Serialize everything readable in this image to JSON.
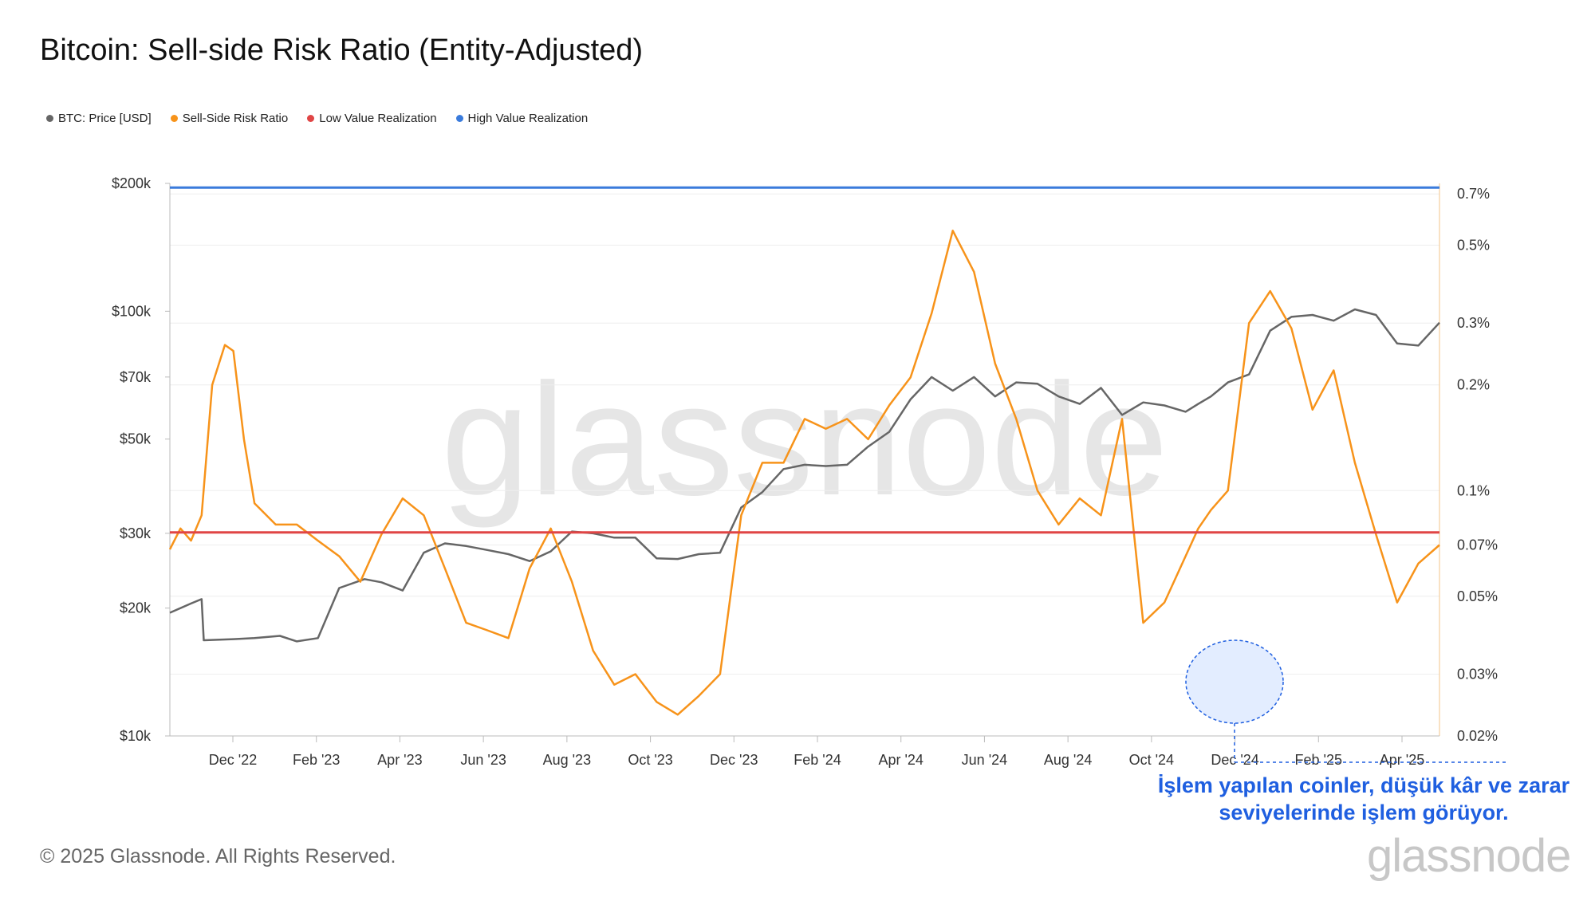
{
  "title": "Bitcoin: Sell-side Risk Ratio (Entity-Adjusted)",
  "legend": [
    {
      "label": "BTC: Price [USD]",
      "color": "#666666"
    },
    {
      "label": "Sell-Side Risk Ratio",
      "color": "#f7931a"
    },
    {
      "label": "Low Value Realization",
      "color": "#e04545"
    },
    {
      "label": "High Value Realization",
      "color": "#3a7bdc"
    }
  ],
  "footer": "© 2025 Glassnode. All Rights Reserved.",
  "watermark": "glassnode",
  "annotation": {
    "line1": "İşlem yapılan coinler, düşük kâr ve zarar",
    "line2": "seviyelerinde işlem görüyor."
  },
  "chart_data": {
    "type": "line",
    "title": "Bitcoin: Sell-side Risk Ratio (Entity-Adjusted)",
    "x_ticks": [
      "Dec '22",
      "Feb '23",
      "Apr '23",
      "Jun '23",
      "Aug '23",
      "Oct '23",
      "Dec '23",
      "Feb '24",
      "Apr '24",
      "Jun '24",
      "Aug '24",
      "Oct '24",
      "Dec '24",
      "Feb '25",
      "Apr '25"
    ],
    "x_range": [
      0,
      30
    ],
    "y_left": {
      "scale": "log",
      "range": [
        10000,
        200000
      ],
      "ticks": [
        10000,
        20000,
        30000,
        50000,
        70000,
        100000,
        200000
      ],
      "tick_labels": [
        "$10k",
        "$20k",
        "$30k",
        "$50k",
        "$70k",
        "$100k",
        "$200k"
      ]
    },
    "y_right": {
      "scale": "log",
      "range": [
        0.02,
        0.75
      ],
      "ticks": [
        0.02,
        0.03,
        0.05,
        0.07,
        0.1,
        0.2,
        0.3,
        0.5,
        0.7
      ],
      "tick_labels": [
        "0.02%",
        "0.03%",
        "0.05%",
        "0.07%",
        "0.1%",
        "0.2%",
        "0.3%",
        "0.5%",
        "0.7%"
      ]
    },
    "series": [
      {
        "name": "BTC: Price [USD]",
        "axis": "left",
        "color": "#666666",
        "x": [
          0,
          0.5,
          0.75,
          0.8,
          1.5,
          2,
          2.6,
          3,
          3.5,
          4,
          4.6,
          5,
          5.5,
          6,
          6.5,
          7,
          7.5,
          8,
          8.5,
          9,
          9.5,
          10,
          10.5,
          11,
          11.5,
          12,
          12.5,
          13,
          13.5,
          14,
          14.5,
          15,
          15.5,
          16,
          16.5,
          17,
          17.5,
          18,
          18.5,
          19,
          19.5,
          20,
          20.5,
          21,
          21.5,
          22,
          22.5,
          23,
          23.5,
          24,
          24.3,
          24.6,
          25,
          25.5,
          26,
          26.5,
          27,
          27.5,
          28,
          28.5,
          29,
          29.5,
          30
        ],
        "y": [
          19500,
          20500,
          21000,
          16800,
          16900,
          17000,
          17200,
          16700,
          17000,
          22300,
          23400,
          23000,
          22000,
          27000,
          28400,
          28000,
          27400,
          26800,
          25800,
          27200,
          30300,
          30000,
          29300,
          29300,
          26200,
          26100,
          26800,
          27000,
          34500,
          37500,
          42500,
          43500,
          43200,
          43500,
          48000,
          52000,
          62000,
          70000,
          65000,
          70000,
          63000,
          68000,
          67500,
          63000,
          60500,
          66000,
          57000,
          61000,
          60000,
          58000,
          60500,
          63000,
          68000,
          71000,
          90000,
          97000,
          98000,
          95000,
          101000,
          98000,
          84000,
          83000,
          94000
        ]
      },
      {
        "name": "Sell-Side Risk Ratio",
        "axis": "right",
        "color": "#f7931a",
        "x": [
          0,
          0.25,
          0.5,
          0.75,
          1,
          1.3,
          1.5,
          1.75,
          2,
          2.5,
          3,
          3.5,
          4,
          4.5,
          5,
          5.5,
          6,
          6.5,
          7,
          7.5,
          8,
          8.5,
          9,
          9.5,
          10,
          10.5,
          11,
          11.5,
          12,
          12.5,
          13,
          13.5,
          14,
          14.5,
          15,
          15.5,
          16,
          16.5,
          17,
          17.5,
          18,
          18.5,
          19,
          19.5,
          20,
          20.5,
          21,
          21.5,
          22,
          22.5,
          23,
          23.5,
          24,
          24.3,
          24.6,
          25,
          25.5,
          26,
          26.5,
          27,
          27.5,
          28,
          28.5,
          29,
          29.5,
          30
        ],
        "y": [
          0.068,
          0.078,
          0.072,
          0.085,
          0.2,
          0.26,
          0.25,
          0.14,
          0.092,
          0.08,
          0.08,
          0.072,
          0.065,
          0.055,
          0.075,
          0.095,
          0.085,
          0.06,
          0.042,
          0.04,
          0.038,
          0.06,
          0.078,
          0.055,
          0.035,
          0.028,
          0.03,
          0.025,
          0.023,
          0.026,
          0.03,
          0.085,
          0.12,
          0.12,
          0.16,
          0.15,
          0.16,
          0.14,
          0.175,
          0.21,
          0.32,
          0.55,
          0.42,
          0.23,
          0.16,
          0.1,
          0.08,
          0.095,
          0.085,
          0.16,
          0.042,
          0.048,
          0.065,
          0.078,
          0.088,
          0.1,
          0.3,
          0.37,
          0.29,
          0.17,
          0.22,
          0.12,
          0.075,
          0.048,
          0.062,
          0.07
        ]
      },
      {
        "name": "Low Value Realization",
        "axis": "right",
        "color": "#e04545",
        "x": [
          0,
          30
        ],
        "y": [
          0.076,
          0.076
        ]
      },
      {
        "name": "High Value Realization",
        "axis": "right",
        "color": "#3a7bdc",
        "x": [
          0,
          30
        ],
        "y": [
          0.73,
          0.73
        ]
      }
    ]
  }
}
